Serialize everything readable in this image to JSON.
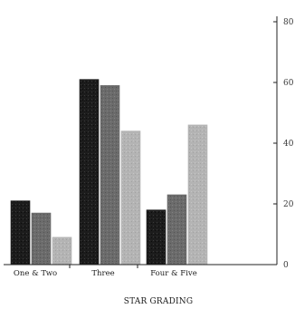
{
  "chart_data": {
    "type": "bar",
    "title": "",
    "xlabel": "STAR GRADING",
    "ylabel": "",
    "ylim": [
      0,
      80
    ],
    "yticks": [
      0,
      20,
      40,
      60,
      80
    ],
    "y_axis_side": "right",
    "grid": false,
    "legend": "none",
    "categories": [
      "One & Two",
      "Three",
      "Four & Five"
    ],
    "series": [
      {
        "values": [
          21,
          61,
          18
        ],
        "color": "#1c1c1c"
      },
      {
        "values": [
          17,
          59,
          23
        ],
        "color": "#6b6b6b"
      },
      {
        "values": [
          9,
          44,
          46
        ],
        "color": "#b4b4b4"
      }
    ]
  }
}
